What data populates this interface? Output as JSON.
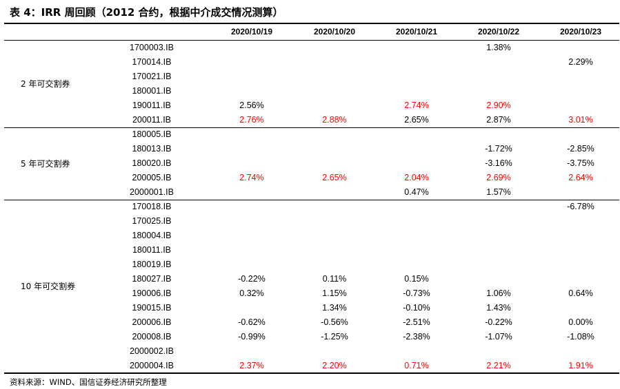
{
  "title": "表 4：IRR 周回顾（2012 合约，根据中介成交情况测算）",
  "footer": "资料来源：WIND、国信证券经济研究所整理",
  "highlight_color": "#ff0000",
  "dates": [
    "2020/10/19",
    "2020/10/20",
    "2020/10/21",
    "2020/10/22",
    "2020/10/23"
  ],
  "groups": [
    {
      "label": "2 年可交割券",
      "rows": [
        {
          "bond": "1700003.IB",
          "values": [
            "",
            "",
            "",
            "1.38%",
            ""
          ],
          "red": [
            false,
            false,
            false,
            false,
            false
          ]
        },
        {
          "bond": "170014.IB",
          "values": [
            "",
            "",
            "",
            "",
            "2.29%"
          ],
          "red": [
            false,
            false,
            false,
            false,
            false
          ]
        },
        {
          "bond": "170021.IB",
          "values": [
            "",
            "",
            "",
            "",
            ""
          ],
          "red": [
            false,
            false,
            false,
            false,
            false
          ]
        },
        {
          "bond": "180001.IB",
          "values": [
            "",
            "",
            "",
            "",
            ""
          ],
          "red": [
            false,
            false,
            false,
            false,
            false
          ]
        },
        {
          "bond": "190011.IB",
          "values": [
            "2.56%",
            "",
            "2.74%",
            "2.90%",
            ""
          ],
          "red": [
            false,
            false,
            true,
            true,
            false
          ]
        },
        {
          "bond": "200011.IB",
          "values": [
            "2.76%",
            "2.88%",
            "2.65%",
            "2.87%",
            "3.01%"
          ],
          "red": [
            true,
            true,
            false,
            false,
            true
          ]
        }
      ]
    },
    {
      "label": "5 年可交割券",
      "rows": [
        {
          "bond": "180005.IB",
          "values": [
            "",
            "",
            "",
            "",
            ""
          ],
          "red": [
            false,
            false,
            false,
            false,
            false
          ]
        },
        {
          "bond": "180013.IB",
          "values": [
            "",
            "",
            "",
            "-1.72%",
            "-2.85%"
          ],
          "red": [
            false,
            false,
            false,
            false,
            false
          ]
        },
        {
          "bond": "180020.IB",
          "values": [
            "",
            "",
            "",
            "-3.16%",
            "-3.75%"
          ],
          "red": [
            false,
            false,
            false,
            false,
            false
          ]
        },
        {
          "bond": "200005.IB",
          "values": [
            "2.74%",
            "2.65%",
            "2.04%",
            "2.69%",
            "2.64%"
          ],
          "red": [
            true,
            true,
            true,
            true,
            true
          ]
        },
        {
          "bond": "2000001.IB",
          "values": [
            "",
            "",
            "0.47%",
            "1.57%",
            ""
          ],
          "red": [
            false,
            false,
            false,
            false,
            false
          ]
        }
      ]
    },
    {
      "label": "10 年可交割券",
      "rows": [
        {
          "bond": "170018.IB",
          "values": [
            "",
            "",
            "",
            "",
            "-6.78%"
          ],
          "red": [
            false,
            false,
            false,
            false,
            false
          ]
        },
        {
          "bond": "170025.IB",
          "values": [
            "",
            "",
            "",
            "",
            ""
          ],
          "red": [
            false,
            false,
            false,
            false,
            false
          ]
        },
        {
          "bond": "180004.IB",
          "values": [
            "",
            "",
            "",
            "",
            ""
          ],
          "red": [
            false,
            false,
            false,
            false,
            false
          ]
        },
        {
          "bond": "180011.IB",
          "values": [
            "",
            "",
            "",
            "",
            ""
          ],
          "red": [
            false,
            false,
            false,
            false,
            false
          ]
        },
        {
          "bond": "180019.IB",
          "values": [
            "",
            "",
            "",
            "",
            ""
          ],
          "red": [
            false,
            false,
            false,
            false,
            false
          ]
        },
        {
          "bond": "180027.IB",
          "values": [
            "-0.22%",
            "0.11%",
            "0.15%",
            "",
            ""
          ],
          "red": [
            false,
            false,
            false,
            false,
            false
          ]
        },
        {
          "bond": "190006.IB",
          "values": [
            "0.32%",
            "1.15%",
            "-0.73%",
            "1.06%",
            "0.64%"
          ],
          "red": [
            false,
            false,
            false,
            false,
            false
          ]
        },
        {
          "bond": "190015.IB",
          "values": [
            "",
            "1.34%",
            "-0.10%",
            "1.43%",
            ""
          ],
          "red": [
            false,
            false,
            false,
            false,
            false
          ]
        },
        {
          "bond": "200006.IB",
          "values": [
            "-0.62%",
            "-0.56%",
            "-2.51%",
            "-0.22%",
            "0.00%"
          ],
          "red": [
            false,
            false,
            false,
            false,
            false
          ]
        },
        {
          "bond": "200008.IB",
          "values": [
            "-0.99%",
            "-1.25%",
            "-2.38%",
            "-1.07%",
            "-1.08%"
          ],
          "red": [
            false,
            false,
            false,
            false,
            false
          ]
        },
        {
          "bond": "2000002.IB",
          "values": [
            "",
            "",
            "",
            "",
            ""
          ],
          "red": [
            false,
            false,
            false,
            false,
            false
          ]
        },
        {
          "bond": "2000004.IB",
          "values": [
            "2.37%",
            "2.20%",
            "0.71%",
            "2.21%",
            "1.91%"
          ],
          "red": [
            true,
            true,
            true,
            true,
            true
          ]
        }
      ]
    }
  ]
}
